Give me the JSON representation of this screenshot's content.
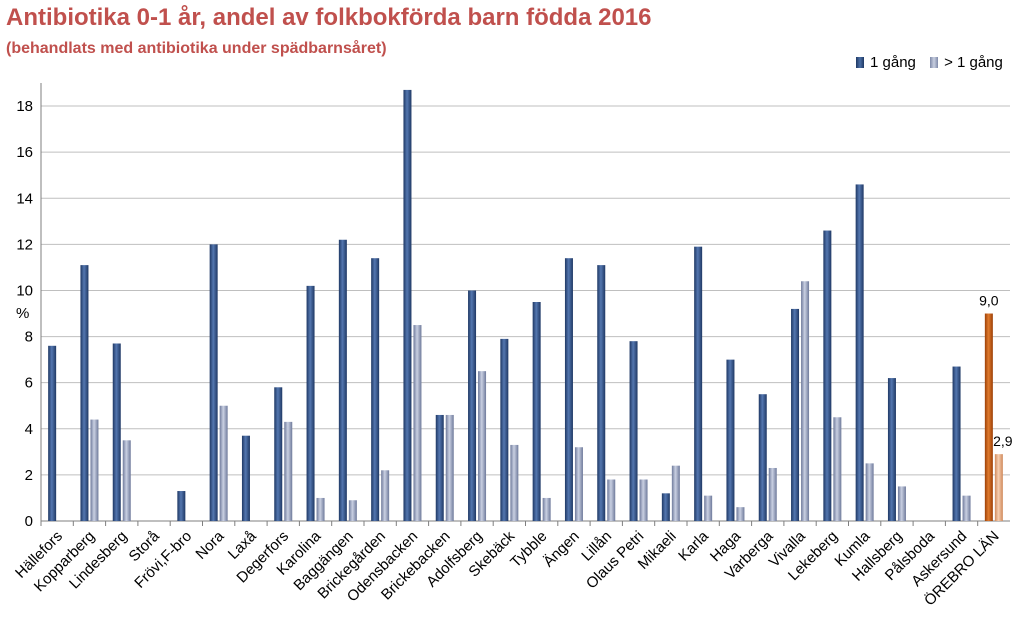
{
  "chart_data": {
    "type": "bar",
    "title": "Antibiotika 0-1 år, andel av folkbokförda barn födda 2016",
    "subtitle": "(behandlats med antibiotika under spädbarnsåret)",
    "ylabel": "%",
    "ylim": [
      0,
      19
    ],
    "yticks": [
      "0",
      "2",
      "4",
      "6",
      "8",
      "10",
      "12",
      "14",
      "16",
      "18"
    ],
    "grid": true,
    "legend_position": "top-right",
    "categories": [
      "Hällefors",
      "Kopparberg",
      "Lindesberg",
      "Storå",
      "Frövi,F-bro",
      "Nora",
      "Laxå",
      "Degerfors",
      "Karolina",
      "Baggängen",
      "Brickegården",
      "Odensbacken",
      "Brickebacken",
      "Adolfsberg",
      "Skebäck",
      "Tybble",
      "Ängen",
      "Lillån",
      "Olaus Petri",
      "Mikaeli",
      "Karla",
      "Haga",
      "Varberga",
      "Vivalla",
      "Lekeberg",
      "Kumla",
      "Hallsberg",
      "Pålsboda",
      "Askersund",
      "ÖREBRO LÄN"
    ],
    "series": [
      {
        "name": "1 gång",
        "color": "#2e4a7a",
        "values": [
          7.6,
          11.1,
          7.7,
          0,
          1.3,
          12.0,
          3.7,
          5.8,
          10.2,
          12.2,
          11.4,
          18.7,
          4.6,
          10.0,
          7.9,
          9.5,
          11.4,
          11.1,
          7.8,
          1.2,
          11.9,
          7.0,
          5.5,
          9.2,
          12.6,
          14.6,
          6.2,
          0,
          6.7,
          9.0
        ]
      },
      {
        "name": "> 1 gång",
        "color": "#8d97b5",
        "values": [
          0,
          4.4,
          3.5,
          0,
          0,
          5.0,
          0,
          4.3,
          1.0,
          0.9,
          2.2,
          8.5,
          4.6,
          6.5,
          3.3,
          1.0,
          3.2,
          1.8,
          1.8,
          2.4,
          1.1,
          0.6,
          2.3,
          10.4,
          4.5,
          2.5,
          1.5,
          0,
          1.1,
          2.9
        ]
      }
    ],
    "highlight": {
      "category": "ÖREBRO LÄN",
      "colors": [
        "#c55a11",
        "#e8a672"
      ]
    },
    "data_labels": [
      "9,0",
      "2,9"
    ]
  }
}
